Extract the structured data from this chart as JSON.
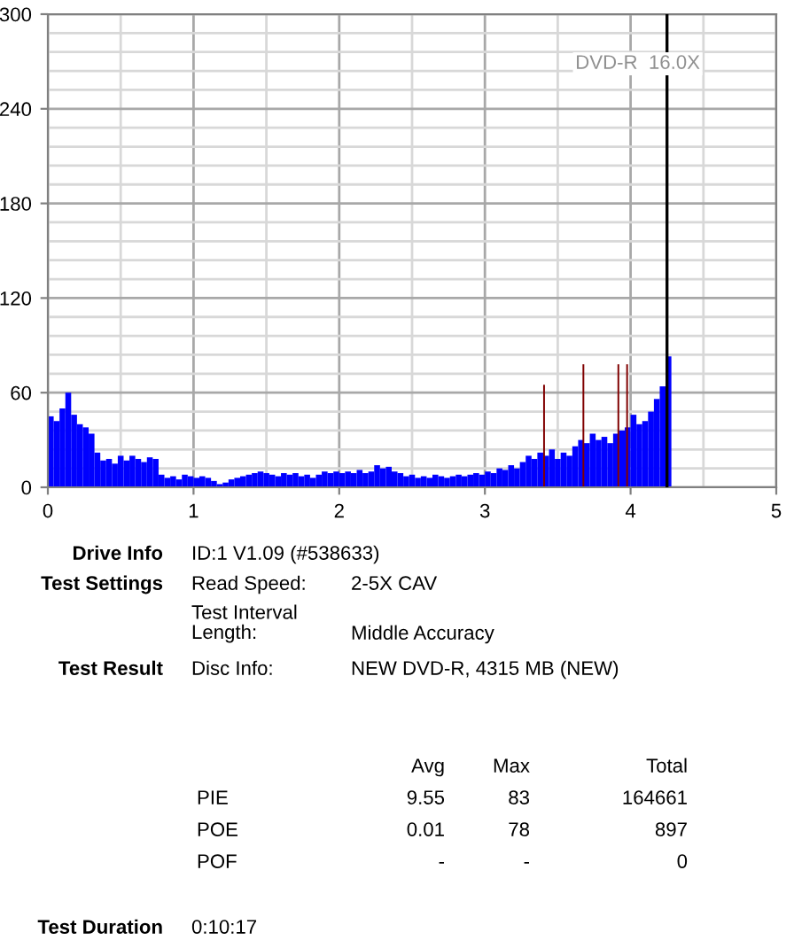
{
  "chart_data": {
    "type": "bar",
    "xlim": [
      0,
      5
    ],
    "ylim": [
      0,
      300
    ],
    "xticks": [
      0,
      {
        "value": 0.5,
        "label": null
      },
      1,
      {
        "value": 1.5,
        "label": null
      },
      2,
      {
        "value": 2.5,
        "label": null
      },
      3,
      {
        "value": 3.5,
        "label": null
      },
      4,
      {
        "value": 4.5,
        "label": null
      },
      5
    ],
    "yticks": [
      0,
      {
        "value": 12,
        "label": null
      },
      {
        "value": 24,
        "label": null
      },
      {
        "value": 36,
        "label": null
      },
      {
        "value": 48,
        "label": null
      },
      60,
      {
        "value": 72,
        "label": null
      },
      {
        "value": 84,
        "label": null
      },
      {
        "value": 96,
        "label": null
      },
      {
        "value": 108,
        "label": null
      },
      120,
      {
        "value": 132,
        "label": null
      },
      {
        "value": 144,
        "label": null
      },
      {
        "value": 156,
        "label": null
      },
      {
        "value": 168,
        "label": null
      },
      180,
      {
        "value": 192,
        "label": null
      },
      {
        "value": 204,
        "label": null
      },
      {
        "value": 216,
        "label": null
      },
      {
        "value": 228,
        "label": null
      },
      240,
      {
        "value": 252,
        "label": null
      },
      {
        "value": 264,
        "label": null
      },
      {
        "value": 276,
        "label": null
      },
      {
        "value": 288,
        "label": null
      },
      300
    ],
    "grid": true,
    "series": [
      {
        "color": "#0000ff",
        "x": [
          0.0,
          0.04,
          0.08,
          0.12,
          0.16,
          0.2,
          0.24,
          0.28,
          0.32,
          0.36,
          0.4,
          0.44,
          0.48,
          0.52,
          0.56,
          0.6,
          0.64,
          0.68,
          0.72,
          0.76,
          0.8,
          0.84,
          0.88,
          0.92,
          0.96,
          1.0,
          1.04,
          1.08,
          1.12,
          1.16,
          1.2,
          1.24,
          1.28,
          1.32,
          1.36,
          1.4,
          1.44,
          1.48,
          1.52,
          1.56,
          1.6,
          1.64,
          1.68,
          1.72,
          1.76,
          1.8,
          1.84,
          1.88,
          1.92,
          1.96,
          2.0,
          2.04,
          2.08,
          2.12,
          2.16,
          2.2,
          2.24,
          2.28,
          2.32,
          2.36,
          2.4,
          2.44,
          2.48,
          2.52,
          2.56,
          2.6,
          2.64,
          2.68,
          2.72,
          2.76,
          2.8,
          2.84,
          2.88,
          2.92,
          2.96,
          3.0,
          3.04,
          3.08,
          3.12,
          3.16,
          3.2,
          3.24,
          3.28,
          3.32,
          3.36,
          3.4,
          3.44,
          3.48,
          3.52,
          3.56,
          3.6,
          3.64,
          3.68,
          3.72,
          3.76,
          3.8,
          3.84,
          3.88,
          3.92,
          3.96,
          4.0,
          4.04,
          4.08,
          4.12,
          4.16,
          4.2,
          4.24
        ],
        "values": [
          45,
          42,
          50,
          60,
          46,
          40,
          38,
          34,
          22,
          17,
          18,
          15,
          20,
          17,
          20,
          18,
          16,
          19,
          18,
          8,
          6,
          7,
          5,
          8,
          7,
          6,
          7,
          6,
          4,
          2,
          3,
          5,
          6,
          7,
          8,
          9,
          10,
          9,
          8,
          7,
          9,
          8,
          9,
          7,
          8,
          6,
          8,
          10,
          9,
          10,
          9,
          10,
          9,
          11,
          9,
          10,
          14,
          12,
          13,
          10,
          9,
          7,
          8,
          6,
          7,
          6,
          8,
          7,
          6,
          7,
          8,
          7,
          8,
          9,
          8,
          10,
          9,
          12,
          11,
          14,
          12,
          16,
          20,
          18,
          22,
          20,
          24,
          18,
          22,
          20,
          26,
          30,
          28,
          34,
          30,
          32,
          28,
          34,
          36,
          38,
          46,
          40,
          42,
          48,
          56,
          64,
          83
        ]
      },
      {
        "color": "#800000",
        "x": [
          3.4,
          3.67,
          3.91,
          3.97
        ],
        "values": [
          65,
          78,
          78,
          78
        ]
      }
    ],
    "ref_lines": [
      {
        "axis": "x",
        "value": 4.25,
        "color": "#000000"
      }
    ],
    "annotations": [
      "DVD-R  16.0X",
      "Drive Info",
      "ID:1 V1.09 (#538633)",
      "Test Settings",
      "Read Speed:",
      "2-5X CAV",
      "Test Interval\nLength:",
      "Middle Accuracy",
      "Test Result",
      "Disc Info:",
      "NEW DVD-R, 4315 MB (NEW)",
      "Avg",
      "Max",
      "Total",
      "PIE",
      "9.55",
      "83",
      "164661",
      "POE",
      "0.01",
      "78",
      "897",
      "POF",
      "-",
      "-",
      "0",
      "Test Duration",
      "0:10:17"
    ]
  }
}
